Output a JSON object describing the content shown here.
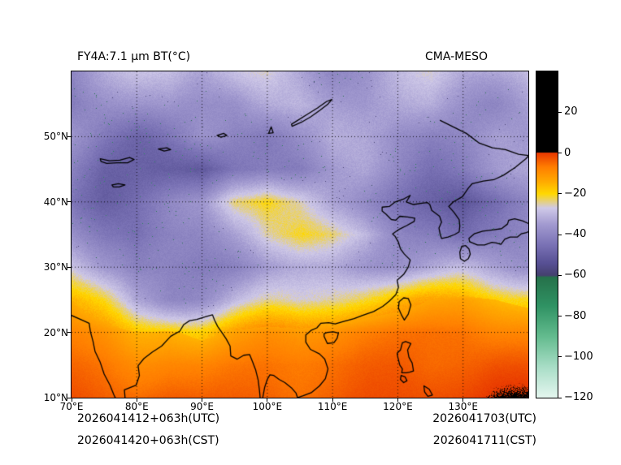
{
  "titles": {
    "left": "FY4A:7.1 μm BT(°C)",
    "right": "CMA-MESO"
  },
  "footer": {
    "left_line1": "2026041412+063h(UTC)",
    "left_line2": "2026041420+063h(CST)",
    "right_line1": "2026041703(UTC)",
    "right_line2": "2026041711(CST)"
  },
  "axes": {
    "y_tick_labels": [
      "50°N",
      "40°N",
      "30°N",
      "20°N",
      "10°N"
    ],
    "y_tick_lats": [
      50,
      40,
      30,
      20,
      10
    ],
    "x_tick_labels": [
      "70°E",
      "80°E",
      "90°E",
      "100°E",
      "110°E",
      "120°E",
      "130°E"
    ],
    "x_tick_lons": [
      70,
      80,
      90,
      100,
      110,
      120,
      130
    ],
    "gridline_lats": [
      20,
      30,
      40,
      50
    ],
    "gridline_lons": [
      80,
      90,
      100,
      110,
      120,
      130
    ]
  },
  "colorbar": {
    "vmin": -120,
    "vmax": 40,
    "tick_values": [
      20,
      0,
      -20,
      -40,
      -60,
      -80,
      -100,
      -120
    ],
    "tick_labels": [
      "20",
      "0",
      "−20",
      "−40",
      "−60",
      "−80",
      "−100",
      "−120"
    ]
  },
  "chart_data": {
    "type": "heatmap",
    "title": "FY4A:7.1 μm BT(°C)",
    "model": "CMA-MESO",
    "units": "°C",
    "lon_range": [
      70,
      140
    ],
    "lat_range": [
      10,
      60
    ],
    "lons": [
      70,
      75,
      80,
      85,
      90,
      95,
      100,
      105,
      110,
      115,
      120,
      125,
      130,
      135,
      140
    ],
    "lats": [
      60,
      55,
      50,
      45,
      40,
      35,
      30,
      25,
      20,
      15,
      10
    ],
    "values_c": [
      [
        -40,
        -36,
        -32,
        -30,
        -34,
        -30,
        -28,
        -32,
        -36,
        -34,
        -30,
        -28,
        -32,
        -30,
        -28
      ],
      [
        -44,
        -40,
        -36,
        -34,
        -38,
        -40,
        -34,
        -30,
        -34,
        -38,
        -36,
        -32,
        -34,
        -36,
        -32
      ],
      [
        -38,
        -42,
        -44,
        -40,
        -36,
        -42,
        -44,
        -38,
        -34,
        -38,
        -42,
        -40,
        -36,
        -32,
        -36
      ],
      [
        -42,
        -46,
        -44,
        -48,
        -52,
        -44,
        -40,
        -42,
        -38,
        -36,
        -40,
        -44,
        -42,
        -38,
        -36
      ],
      [
        -44,
        -48,
        -46,
        -42,
        -38,
        -22,
        -17,
        -24,
        -34,
        -38,
        -42,
        -48,
        -56,
        -52,
        -44
      ],
      [
        -36,
        -44,
        -50,
        -46,
        -42,
        -32,
        -23,
        -20,
        -22,
        -26,
        -36,
        -42,
        -50,
        -46,
        -40
      ],
      [
        -26,
        -38,
        -46,
        -44,
        -42,
        -40,
        -36,
        -34,
        -32,
        -34,
        -36,
        -34,
        -30,
        -32,
        -34
      ],
      [
        -14,
        -22,
        -34,
        -38,
        -36,
        -30,
        -28,
        -30,
        -26,
        -22,
        -18,
        -14,
        -12,
        -14,
        -16
      ],
      [
        -8,
        -10,
        -14,
        -13,
        -16,
        -13,
        -11,
        -12,
        -10,
        -8,
        -7,
        -6,
        -5,
        -7,
        -8
      ],
      [
        -5,
        -6,
        -8,
        -7,
        -8,
        -7,
        -6,
        -6,
        -5,
        -4,
        -4,
        -5,
        -4,
        -3,
        -4
      ],
      [
        -3,
        -4,
        -5,
        -4,
        -5,
        -4,
        -3,
        -4,
        -3,
        -2,
        -2,
        -2,
        -2,
        -1,
        -1
      ]
    ],
    "colormap": [
      {
        "v": -120,
        "c": "#e4f6ef"
      },
      {
        "v": -105,
        "c": "#a8ddc6"
      },
      {
        "v": -90,
        "c": "#63bb8e"
      },
      {
        "v": -75,
        "c": "#2f9263"
      },
      {
        "v": -61,
        "c": "#26714a"
      },
      {
        "v": -60,
        "c": "#45406e"
      },
      {
        "v": -54,
        "c": "#575094"
      },
      {
        "v": -45,
        "c": "#7a72b5"
      },
      {
        "v": -35,
        "c": "#a29ad0"
      },
      {
        "v": -27,
        "c": "#cfc9e8"
      },
      {
        "v": -20,
        "c": "#ffd800"
      },
      {
        "v": -14,
        "c": "#ffaa00"
      },
      {
        "v": -7,
        "c": "#ff7e00"
      },
      {
        "v": -0.01,
        "c": "#e83800"
      },
      {
        "v": 0.4,
        "c": "#000000"
      },
      {
        "v": 40,
        "c": "#000000"
      }
    ]
  }
}
